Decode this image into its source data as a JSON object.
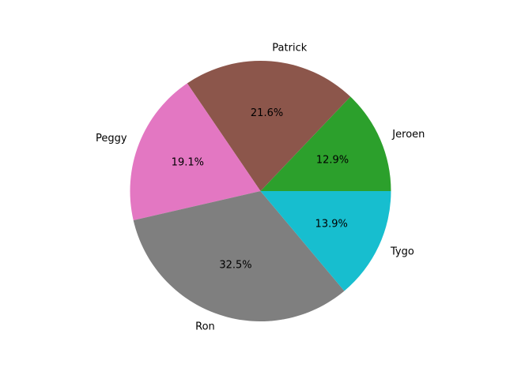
{
  "chart_data": {
    "type": "pie",
    "title": "",
    "start_angle_deg": 0,
    "direction": "counterclockwise",
    "slices": [
      {
        "label": "Jeroen",
        "value": 12.9,
        "pct_text": "12.9%",
        "color": "#2ca02c"
      },
      {
        "label": "Patrick",
        "value": 21.6,
        "pct_text": "21.6%",
        "color": "#8c564b"
      },
      {
        "label": "Peggy",
        "value": 19.1,
        "pct_text": "19.1%",
        "color": "#e377c2"
      },
      {
        "label": "Ron",
        "value": 32.5,
        "pct_text": "32.5%",
        "color": "#7f7f7f"
      },
      {
        "label": "Tygo",
        "value": 13.9,
        "pct_text": "13.9%",
        "color": "#17becf"
      }
    ]
  }
}
